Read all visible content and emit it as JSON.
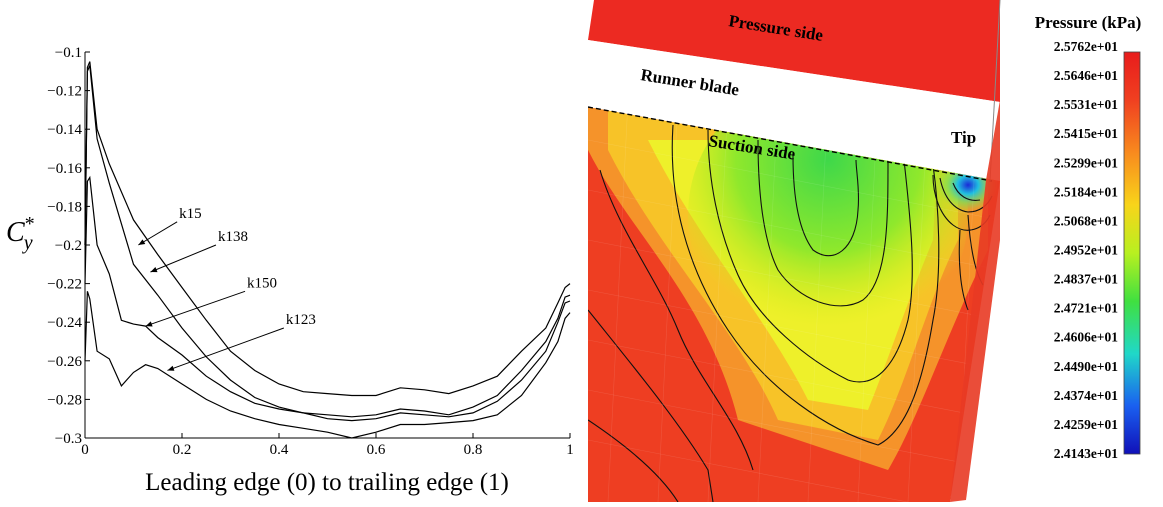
{
  "chart_data": [
    {
      "type": "line",
      "title": "",
      "xlabel": "Leading edge (0) to trailing edge (1)",
      "ylabel": {
        "base": "C",
        "sub": "y",
        "sup": "*"
      },
      "xlim": [
        0,
        1
      ],
      "ylim": [
        -0.3,
        -0.1
      ],
      "xticks": [
        0,
        0.2,
        0.4,
        0.6,
        0.8,
        1
      ],
      "yticks": [
        -0.1,
        -0.12,
        -0.14,
        -0.16,
        -0.18,
        -0.2,
        -0.22,
        -0.24,
        -0.26,
        -0.28,
        -0.3
      ],
      "xtick_labels": [
        "0",
        "0.2",
        "0.4",
        "0.6",
        "0.8",
        "1"
      ],
      "ytick_labels": [
        "−0.1",
        "−0.12",
        "−0.14",
        "−0.16",
        "−0.18",
        "−0.2",
        "−0.22",
        "−0.24",
        "−0.26",
        "−0.28",
        "−0.3"
      ],
      "grid": false,
      "series": [
        {
          "name": "k15",
          "x": [
            0,
            0.005,
            0.01,
            0.025,
            0.05,
            0.1,
            0.15,
            0.2,
            0.25,
            0.3,
            0.35,
            0.4,
            0.45,
            0.5,
            0.55,
            0.6,
            0.65,
            0.7,
            0.75,
            0.8,
            0.85,
            0.9,
            0.95,
            0.975,
            0.99,
            1
          ],
          "y": [
            -0.2,
            -0.108,
            -0.105,
            -0.14,
            -0.158,
            -0.187,
            -0.205,
            -0.222,
            -0.239,
            -0.255,
            -0.265,
            -0.272,
            -0.276,
            -0.277,
            -0.278,
            -0.278,
            -0.274,
            -0.275,
            -0.277,
            -0.273,
            -0.268,
            -0.255,
            -0.243,
            -0.23,
            -0.222,
            -0.22
          ],
          "label_anchor": [
            0.11,
            -0.2
          ],
          "label_pos": [
            0.19,
            -0.188
          ]
        },
        {
          "name": "k138",
          "x": [
            0,
            0.005,
            0.01,
            0.025,
            0.05,
            0.1,
            0.15,
            0.2,
            0.25,
            0.3,
            0.35,
            0.4,
            0.45,
            0.5,
            0.55,
            0.6,
            0.65,
            0.7,
            0.75,
            0.8,
            0.85,
            0.9,
            0.95,
            0.975,
            0.99,
            1
          ],
          "y": [
            -0.2,
            -0.11,
            -0.107,
            -0.145,
            -0.168,
            -0.21,
            -0.226,
            -0.243,
            -0.258,
            -0.27,
            -0.279,
            -0.284,
            -0.287,
            -0.288,
            -0.289,
            -0.288,
            -0.285,
            -0.286,
            -0.288,
            -0.284,
            -0.278,
            -0.265,
            -0.25,
            -0.238,
            -0.227,
            -0.226
          ],
          "label_anchor": [
            0.135,
            -0.214
          ],
          "label_pos": [
            0.27,
            -0.2
          ]
        },
        {
          "name": "k150",
          "x": [
            0,
            0.005,
            0.01,
            0.025,
            0.05,
            0.075,
            0.1,
            0.125,
            0.15,
            0.2,
            0.25,
            0.3,
            0.35,
            0.4,
            0.45,
            0.5,
            0.55,
            0.6,
            0.65,
            0.7,
            0.75,
            0.8,
            0.85,
            0.9,
            0.95,
            0.975,
            0.99,
            1
          ],
          "y": [
            -0.22,
            -0.167,
            -0.165,
            -0.2,
            -0.215,
            -0.239,
            -0.241,
            -0.242,
            -0.248,
            -0.257,
            -0.268,
            -0.276,
            -0.282,
            -0.285,
            -0.287,
            -0.29,
            -0.291,
            -0.29,
            -0.287,
            -0.288,
            -0.289,
            -0.287,
            -0.281,
            -0.27,
            -0.255,
            -0.24,
            -0.23,
            -0.229
          ],
          "label_anchor": [
            0.125,
            -0.242
          ],
          "label_pos": [
            0.33,
            -0.224
          ]
        },
        {
          "name": "k123",
          "x": [
            0,
            0.005,
            0.01,
            0.025,
            0.05,
            0.075,
            0.1,
            0.125,
            0.15,
            0.2,
            0.25,
            0.3,
            0.35,
            0.4,
            0.45,
            0.5,
            0.55,
            0.6,
            0.65,
            0.7,
            0.75,
            0.8,
            0.85,
            0.9,
            0.95,
            0.975,
            0.99,
            1
          ],
          "y": [
            -0.26,
            -0.224,
            -0.228,
            -0.255,
            -0.259,
            -0.273,
            -0.266,
            -0.262,
            -0.264,
            -0.272,
            -0.28,
            -0.286,
            -0.29,
            -0.293,
            -0.295,
            -0.297,
            -0.3,
            -0.297,
            -0.293,
            -0.293,
            -0.292,
            -0.291,
            -0.288,
            -0.278,
            -0.261,
            -0.25,
            -0.238,
            -0.235
          ],
          "label_anchor": [
            0.17,
            -0.265
          ],
          "label_pos": [
            0.41,
            -0.243
          ]
        }
      ]
    },
    {
      "type": "heatmap",
      "title": "",
      "labels": {
        "pressure_side": "Pressure side",
        "runner_blade": "Runner blade",
        "suction_side": "Suction side",
        "tip": "Tip"
      },
      "colorbar": {
        "title": "Pressure (kPa)",
        "values": [
          "2.5762e+01",
          "2.5646e+01",
          "2.5531e+01",
          "2.5415e+01",
          "2.5299e+01",
          "2.5184e+01",
          "2.5068e+01",
          "2.4952e+01",
          "2.4837e+01",
          "2.4721e+01",
          "2.4606e+01",
          "2.4490e+01",
          "2.4374e+01",
          "2.4259e+01",
          "2.4143e+01"
        ],
        "colormap": "jet",
        "colors": [
          "#e81c1c",
          "#f04020",
          "#f88a1e",
          "#f8d41a",
          "#b8f020",
          "#40e040",
          "#20d8c8",
          "#1a60f0",
          "#1010b8"
        ]
      }
    }
  ]
}
